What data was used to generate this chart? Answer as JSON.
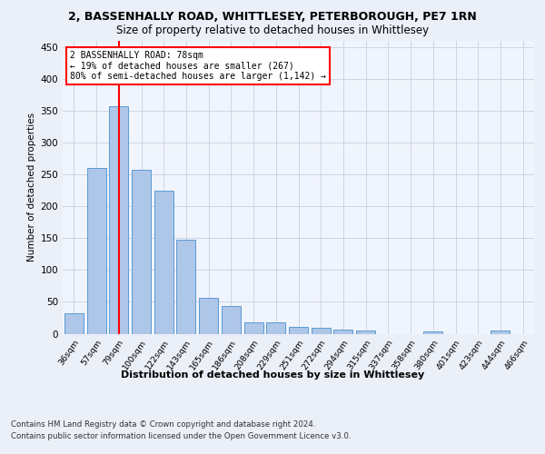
{
  "title1": "2, BASSENHALLY ROAD, WHITTLESEY, PETERBOROUGH, PE7 1RN",
  "title2": "Size of property relative to detached houses in Whittlesey",
  "xlabel": "Distribution of detached houses by size in Whittlesey",
  "ylabel": "Number of detached properties",
  "categories": [
    "36sqm",
    "57sqm",
    "79sqm",
    "100sqm",
    "122sqm",
    "143sqm",
    "165sqm",
    "186sqm",
    "208sqm",
    "229sqm",
    "251sqm",
    "272sqm",
    "294sqm",
    "315sqm",
    "337sqm",
    "358sqm",
    "380sqm",
    "401sqm",
    "423sqm",
    "444sqm",
    "466sqm"
  ],
  "values": [
    32,
    261,
    357,
    258,
    225,
    148,
    57,
    44,
    18,
    18,
    11,
    9,
    7,
    5,
    0,
    0,
    4,
    0,
    0,
    5,
    0
  ],
  "bar_color": "#aec6e8",
  "bar_edge_color": "#5a9bd4",
  "subject_line_index": 2,
  "subject_label": "2 BASSENHALLY ROAD: 78sqm",
  "annotation_line1": "← 19% of detached houses are smaller (267)",
  "annotation_line2": "80% of semi-detached houses are larger (1,142) →",
  "ylim": [
    0,
    460
  ],
  "yticks": [
    0,
    50,
    100,
    150,
    200,
    250,
    300,
    350,
    400,
    450
  ],
  "footer1": "Contains HM Land Registry data © Crown copyright and database right 2024.",
  "footer2": "Contains public sector information licensed under the Open Government Licence v3.0.",
  "bg_color": "#eaeff8",
  "plot_bg_color": "#f0f4fc",
  "grid_color": "#c8cfe0"
}
